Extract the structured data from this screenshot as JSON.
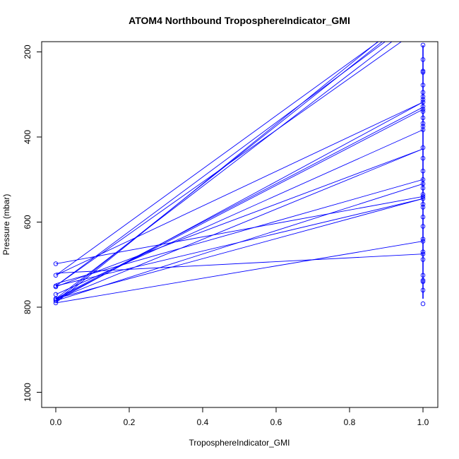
{
  "chart_data": {
    "type": "line",
    "title": "ATOM4 Northbound TroposphereIndicator_GMI",
    "xlabel": "TroposphereIndicator_GMI",
    "ylabel": "Pressure (mbar)",
    "xlim": [
      0.0,
      1.0
    ],
    "ylim": [
      1035,
      180
    ],
    "y_reversed": true,
    "x_ticks": [
      "0.0",
      "0.2",
      "0.4",
      "0.6",
      "0.8",
      "1.0"
    ],
    "y_ticks": [
      "200",
      "400",
      "600",
      "800",
      "1000"
    ],
    "series_color": "#0000ff",
    "marker": "open-circle",
    "segments": [
      {
        "x": [
          0,
          1
        ],
        "y": [
          785,
          100
        ]
      },
      {
        "x": [
          0,
          1
        ],
        "y": [
          780,
          120
        ]
      },
      {
        "x": [
          0,
          1
        ],
        "y": [
          750,
          140
        ]
      },
      {
        "x": [
          0,
          1
        ],
        "y": [
          725,
          100
        ]
      },
      {
        "x": [
          0,
          1
        ],
        "y": [
          750,
          110
        ]
      },
      {
        "x": [
          0,
          1
        ],
        "y": [
          790,
          90
        ]
      },
      {
        "x": [
          0,
          1
        ],
        "y": [
          785,
          318
        ]
      },
      {
        "x": [
          0,
          1
        ],
        "y": [
          780,
          330
        ]
      },
      {
        "x": [
          0,
          1
        ],
        "y": [
          782,
          335
        ]
      },
      {
        "x": [
          0,
          1
        ],
        "y": [
          770,
          383
        ]
      },
      {
        "x": [
          0,
          1
        ],
        "y": [
          725,
          318
        ]
      },
      {
        "x": [
          0,
          1
        ],
        "y": [
          752,
          428
        ]
      },
      {
        "x": [
          0,
          1
        ],
        "y": [
          782,
          428
        ]
      },
      {
        "x": [
          0,
          1
        ],
        "y": [
          745,
          500
        ]
      },
      {
        "x": [
          0,
          1
        ],
        "y": [
          785,
          510
        ]
      },
      {
        "x": [
          0,
          1
        ],
        "y": [
          698,
          540
        ]
      },
      {
        "x": [
          0,
          1
        ],
        "y": [
          750,
          545
        ]
      },
      {
        "x": [
          0,
          1
        ],
        "y": [
          780,
          545
        ]
      },
      {
        "x": [
          0,
          1
        ],
        "y": [
          720,
          675
        ]
      },
      {
        "x": [
          0,
          1
        ],
        "y": [
          790,
          645
        ]
      }
    ],
    "points": [
      {
        "x": 0,
        "y": 698
      },
      {
        "x": 0,
        "y": 725
      },
      {
        "x": 0,
        "y": 750
      },
      {
        "x": 0,
        "y": 752
      },
      {
        "x": 0,
        "y": 770
      },
      {
        "x": 0,
        "y": 780
      },
      {
        "x": 0,
        "y": 782
      },
      {
        "x": 0,
        "y": 785
      },
      {
        "x": 0,
        "y": 790
      },
      {
        "x": 1,
        "y": 184
      },
      {
        "x": 1,
        "y": 218
      },
      {
        "x": 1,
        "y": 245
      },
      {
        "x": 1,
        "y": 248
      },
      {
        "x": 1,
        "y": 278
      },
      {
        "x": 1,
        "y": 295
      },
      {
        "x": 1,
        "y": 305
      },
      {
        "x": 1,
        "y": 312
      },
      {
        "x": 1,
        "y": 318
      },
      {
        "x": 1,
        "y": 328
      },
      {
        "x": 1,
        "y": 335
      },
      {
        "x": 1,
        "y": 340
      },
      {
        "x": 1,
        "y": 355
      },
      {
        "x": 1,
        "y": 368
      },
      {
        "x": 1,
        "y": 375
      },
      {
        "x": 1,
        "y": 383
      },
      {
        "x": 1,
        "y": 425
      },
      {
        "x": 1,
        "y": 450
      },
      {
        "x": 1,
        "y": 480
      },
      {
        "x": 1,
        "y": 500
      },
      {
        "x": 1,
        "y": 510
      },
      {
        "x": 1,
        "y": 520
      },
      {
        "x": 1,
        "y": 535
      },
      {
        "x": 1,
        "y": 540
      },
      {
        "x": 1,
        "y": 545
      },
      {
        "x": 1,
        "y": 558
      },
      {
        "x": 1,
        "y": 565
      },
      {
        "x": 1,
        "y": 588
      },
      {
        "x": 1,
        "y": 610
      },
      {
        "x": 1,
        "y": 640
      },
      {
        "x": 1,
        "y": 645
      },
      {
        "x": 1,
        "y": 670
      },
      {
        "x": 1,
        "y": 675
      },
      {
        "x": 1,
        "y": 688
      },
      {
        "x": 1,
        "y": 725
      },
      {
        "x": 1,
        "y": 737
      },
      {
        "x": 1,
        "y": 740
      },
      {
        "x": 1,
        "y": 760
      },
      {
        "x": 1,
        "y": 792
      }
    ],
    "vertical_line": {
      "x": 1,
      "y": [
        184,
        780
      ]
    }
  }
}
